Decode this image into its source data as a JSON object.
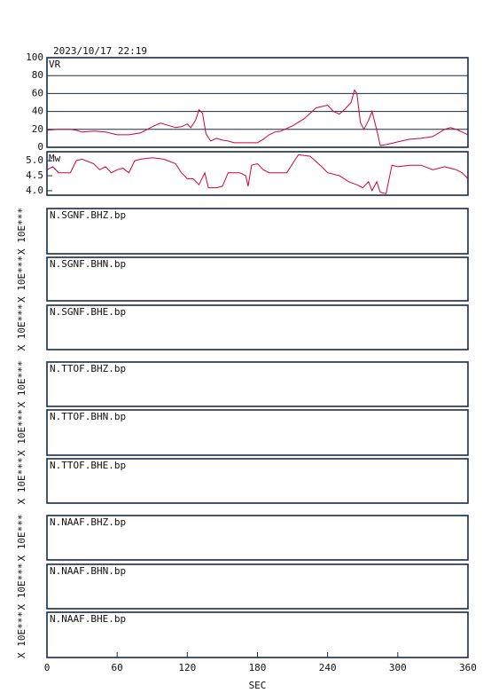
{
  "title": "2023/10/17 22:19",
  "chart_data": [
    {
      "type": "line",
      "y_label": "VR",
      "color": "#d0003c",
      "grid": true,
      "x": [
        0,
        10,
        20,
        25,
        30,
        40,
        50,
        60,
        70,
        80,
        90,
        97,
        105,
        110,
        115,
        120,
        123,
        127,
        130,
        133,
        136,
        140,
        145,
        150,
        155,
        160,
        170,
        180,
        185,
        190,
        195,
        200,
        210,
        220,
        230,
        240,
        245,
        250,
        255,
        260,
        263,
        265,
        268,
        271,
        275,
        278,
        283,
        285,
        290,
        300,
        310,
        320,
        330,
        340,
        345,
        350,
        355,
        360
      ],
      "values": [
        19,
        20,
        20,
        19,
        17,
        18,
        17,
        14,
        14,
        16,
        23,
        27,
        24,
        22,
        23,
        26,
        22,
        30,
        42,
        38,
        15,
        7,
        10,
        8,
        7,
        5,
        5,
        5,
        9,
        14,
        17,
        18,
        24,
        32,
        44,
        47,
        40,
        37,
        43,
        50,
        64,
        60,
        28,
        20,
        30,
        40,
        14,
        2,
        3,
        6,
        9,
        10,
        12,
        20,
        22,
        20,
        17,
        14
      ],
      "xlim": [
        0,
        360
      ],
      "ylim": [
        0,
        100
      ],
      "yticks": [
        0,
        20,
        40,
        60,
        80,
        100
      ]
    },
    {
      "type": "line",
      "y_label": "Mw",
      "color": "#d0003c",
      "grid": false,
      "x": [
        0,
        5,
        10,
        20,
        25,
        30,
        40,
        45,
        50,
        55,
        60,
        65,
        70,
        75,
        80,
        90,
        100,
        110,
        115,
        120,
        125,
        130,
        135,
        138,
        145,
        150,
        155,
        165,
        170,
        172,
        175,
        180,
        185,
        190,
        200,
        205,
        210,
        215,
        225,
        235,
        240,
        250,
        258,
        265,
        270,
        275,
        278,
        282,
        285,
        290,
        295,
        300,
        310,
        320,
        330,
        340,
        350,
        355,
        360
      ],
      "values": [
        4.7,
        4.8,
        4.6,
        4.6,
        5.0,
        5.05,
        4.9,
        4.7,
        4.8,
        4.6,
        4.7,
        4.75,
        4.6,
        5.0,
        5.05,
        5.1,
        5.05,
        4.9,
        4.6,
        4.4,
        4.4,
        4.2,
        4.6,
        4.1,
        4.1,
        4.15,
        4.6,
        4.6,
        4.5,
        4.15,
        4.85,
        4.9,
        4.7,
        4.6,
        4.6,
        4.6,
        4.9,
        5.2,
        5.15,
        4.8,
        4.6,
        4.5,
        4.3,
        4.2,
        4.1,
        4.3,
        4.0,
        4.3,
        3.95,
        3.9,
        4.85,
        4.8,
        4.85,
        4.85,
        4.7,
        4.8,
        4.7,
        4.6,
        4.4
      ],
      "xlim": [
        0,
        360
      ],
      "ylim": [
        3.85,
        5.3
      ],
      "yticks": [
        {
          "value": 4,
          "label": "4.0"
        },
        4.5,
        {
          "value": 5,
          "label": "5.0"
        }
      ]
    }
  ],
  "waveform_panels": [
    {
      "label": "N.SGNF.BHZ.bp",
      "scale_label": "X 10E***"
    },
    {
      "label": "N.SGNF.BHN.bp",
      "scale_label": "X 10E***"
    },
    {
      "label": "N.SGNF.BHE.bp",
      "scale_label": "X 10E***"
    },
    {
      "label": "N.TTOF.BHZ.bp",
      "scale_label": "X 10E***"
    },
    {
      "label": "N.TTOF.BHN.bp",
      "scale_label": "X 10E***"
    },
    {
      "label": "N.TTOF.BHE.bp",
      "scale_label": "X 10E***"
    },
    {
      "label": "N.NAAF.BHZ.bp",
      "scale_label": "X 10E***"
    },
    {
      "label": "N.NAAF.BHN.bp",
      "scale_label": "X 10E***"
    },
    {
      "label": "N.NAAF.BHE.bp",
      "scale_label": "X 10E***"
    }
  ],
  "x_axis": {
    "label": "SEC",
    "xlim": [
      0,
      360
    ],
    "xticks": [
      0,
      60,
      120,
      180,
      240,
      300,
      360
    ]
  }
}
